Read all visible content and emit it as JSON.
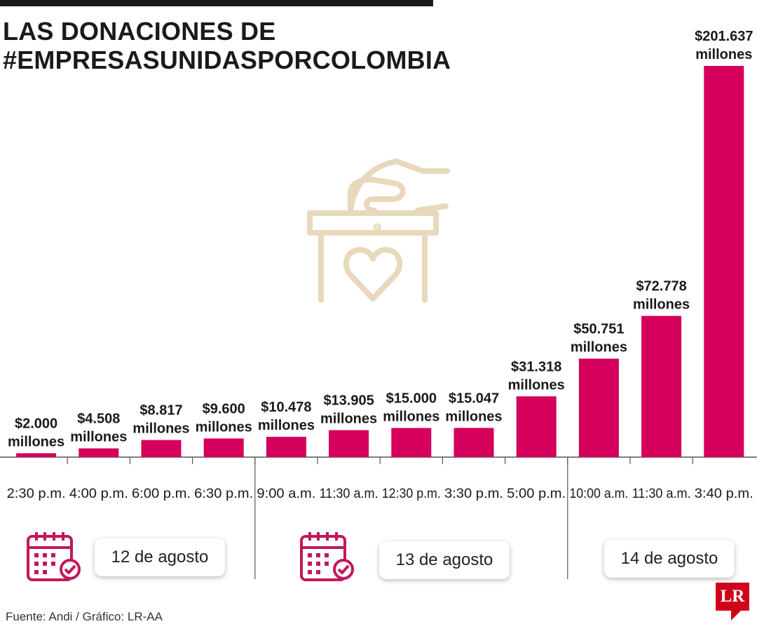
{
  "title_lines": [
    "LAS DONACIONES DE",
    "#EMPRESASUNIDASPORCOLOMBIA"
  ],
  "source": "Fuente: Andi / Gráfico: LR-AA",
  "logo": "LR",
  "colors": {
    "bar": "#d4005b",
    "icon": "#e8d8bc",
    "accent_icon": "#c2185b"
  },
  "icons": {
    "illustration": "ballot-box-heart-icon",
    "calendar": "calendar-check-icon"
  },
  "dates": [
    "12 de agosto",
    "13 de agosto",
    "14 de agosto"
  ],
  "chart_data": {
    "type": "bar",
    "categories": [
      "2:30 p.m.",
      "4:00 p.m.",
      "6:00 p.m.",
      "6:30 p.m.",
      "9:00 a.m.",
      "11:30 a.m.",
      "12:30 p.m.",
      "3:30 p.m.",
      "5:00 p.m.",
      "10:00 a.m.",
      "11:30 a.m.",
      "3:40 p.m."
    ],
    "values": [
      2000,
      4508,
      8817,
      9600,
      10478,
      13905,
      15000,
      15047,
      31318,
      50751,
      72778,
      201637
    ],
    "value_labels": [
      "$2.000",
      "$4.508",
      "$8.817",
      "$9.600",
      "$10.478",
      "$13.905",
      "$15.000",
      "$15.047",
      "$31.318",
      "$50.751",
      "$72.778",
      "$201.637"
    ],
    "unit_label": "millones",
    "groups": [
      {
        "date": "12 de agosto",
        "count": 4
      },
      {
        "date": "13 de agosto",
        "count": 5
      },
      {
        "date": "14 de agosto",
        "count": 3
      }
    ],
    "title": "LAS DONACIONES DE #EMPRESASUNIDASPORCOLOMBIA",
    "xlabel": "",
    "ylabel": "",
    "ylim": [
      0,
      201637
    ],
    "grid": false
  }
}
